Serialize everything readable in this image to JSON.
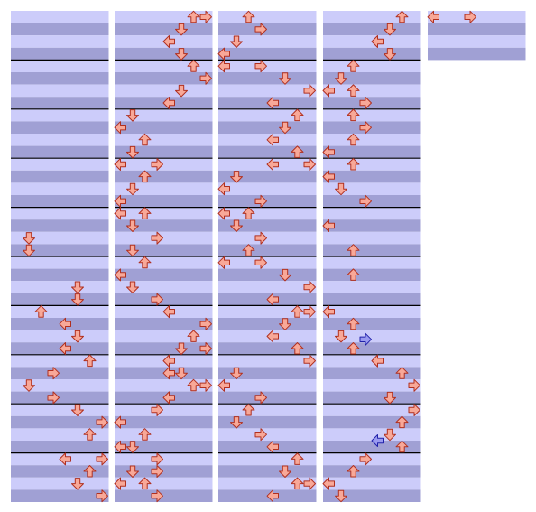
{
  "note_color": "#f8a898",
  "columns": [
    {
      "rows": 40,
      "notes": [
        [
          18,
          1
        ],
        [
          19,
          1
        ],
        [
          22,
          5
        ],
        [
          23,
          5
        ],
        [
          24,
          2
        ],
        [
          25,
          4
        ],
        [
          26,
          5
        ],
        [
          27,
          4
        ],
        [
          28,
          6
        ],
        [
          29,
          3
        ],
        [
          30,
          1
        ],
        [
          31,
          3
        ],
        [
          32,
          5
        ],
        [
          33,
          7
        ],
        [
          34,
          6
        ],
        [
          36,
          4
        ],
        [
          36,
          7
        ],
        [
          37,
          6
        ],
        [
          38,
          5
        ],
        [
          39,
          7
        ]
      ]
    },
    {
      "rows": 40,
      "notes": [
        [
          0,
          6
        ],
        [
          0,
          7
        ],
        [
          1,
          5
        ],
        [
          2,
          4
        ],
        [
          3,
          5
        ],
        [
          4,
          6
        ],
        [
          5,
          7
        ],
        [
          6,
          5
        ],
        [
          7,
          4
        ],
        [
          8,
          1
        ],
        [
          9,
          0
        ],
        [
          10,
          2
        ],
        [
          11,
          1
        ],
        [
          12,
          0
        ],
        [
          12,
          3
        ],
        [
          13,
          2
        ],
        [
          14,
          1
        ],
        [
          15,
          0
        ],
        [
          16,
          0
        ],
        [
          16,
          2
        ],
        [
          17,
          1
        ],
        [
          18,
          3
        ],
        [
          19,
          1
        ],
        [
          20,
          2
        ],
        [
          21,
          0
        ],
        [
          22,
          1
        ],
        [
          23,
          3
        ],
        [
          24,
          4
        ],
        [
          25,
          7
        ],
        [
          26,
          6
        ],
        [
          27,
          5
        ],
        [
          27,
          7
        ],
        [
          28,
          4
        ],
        [
          29,
          4
        ],
        [
          29,
          5
        ],
        [
          30,
          6
        ],
        [
          30,
          7
        ],
        [
          31,
          4
        ],
        [
          32,
          3
        ],
        [
          33,
          0
        ],
        [
          34,
          2
        ],
        [
          35,
          0
        ],
        [
          35,
          1
        ],
        [
          36,
          3
        ],
        [
          37,
          1
        ],
        [
          37,
          3
        ],
        [
          38,
          0
        ],
        [
          38,
          2
        ],
        [
          39,
          3
        ]
      ]
    },
    {
      "rows": 40,
      "notes": [
        [
          0,
          2
        ],
        [
          1,
          3
        ],
        [
          2,
          1
        ],
        [
          3,
          0
        ],
        [
          4,
          0
        ],
        [
          4,
          3
        ],
        [
          5,
          5
        ],
        [
          6,
          7
        ],
        [
          7,
          4
        ],
        [
          8,
          6
        ],
        [
          9,
          5
        ],
        [
          10,
          4
        ],
        [
          11,
          6
        ],
        [
          12,
          4
        ],
        [
          12,
          7
        ],
        [
          13,
          1
        ],
        [
          14,
          0
        ],
        [
          15,
          3
        ],
        [
          16,
          0
        ],
        [
          16,
          2
        ],
        [
          17,
          1
        ],
        [
          18,
          3
        ],
        [
          19,
          2
        ],
        [
          20,
          0
        ],
        [
          20,
          3
        ],
        [
          21,
          5
        ],
        [
          22,
          7
        ],
        [
          23,
          4
        ],
        [
          24,
          6
        ],
        [
          24,
          7
        ],
        [
          25,
          5
        ],
        [
          26,
          4
        ],
        [
          27,
          6
        ],
        [
          28,
          7
        ],
        [
          29,
          1
        ],
        [
          30,
          0
        ],
        [
          31,
          3
        ],
        [
          32,
          2
        ],
        [
          33,
          1
        ],
        [
          34,
          3
        ],
        [
          35,
          4
        ],
        [
          36,
          6
        ],
        [
          37,
          5
        ],
        [
          38,
          6
        ],
        [
          38,
          7
        ],
        [
          39,
          4
        ]
      ]
    },
    {
      "rows": 40,
      "notes": [
        [
          0,
          6
        ],
        [
          1,
          5
        ],
        [
          2,
          4
        ],
        [
          3,
          5
        ],
        [
          4,
          2
        ],
        [
          5,
          1
        ],
        [
          6,
          0
        ],
        [
          6,
          2
        ],
        [
          7,
          3
        ],
        [
          8,
          2
        ],
        [
          9,
          3
        ],
        [
          10,
          2
        ],
        [
          11,
          0
        ],
        [
          12,
          2
        ],
        [
          13,
          0
        ],
        [
          14,
          1
        ],
        [
          15,
          3
        ],
        [
          17,
          0
        ],
        [
          19,
          2
        ],
        [
          21,
          2
        ],
        [
          24,
          0
        ],
        [
          25,
          2
        ],
        [
          26,
          1
        ],
        [
          26.25,
          3,
          "#9a9af0"
        ],
        [
          27,
          2
        ],
        [
          28,
          4
        ],
        [
          29,
          6
        ],
        [
          30,
          7
        ],
        [
          31,
          5
        ],
        [
          32,
          7
        ],
        [
          33,
          6
        ],
        [
          34,
          5
        ],
        [
          34.5,
          4,
          "#9a9af0"
        ],
        [
          35,
          6
        ],
        [
          36,
          3
        ],
        [
          37,
          2
        ],
        [
          38,
          0
        ],
        [
          39,
          1
        ]
      ]
    },
    {
      "rows": 4,
      "notes": [
        [
          0,
          0
        ],
        [
          0,
          3
        ]
      ]
    }
  ]
}
